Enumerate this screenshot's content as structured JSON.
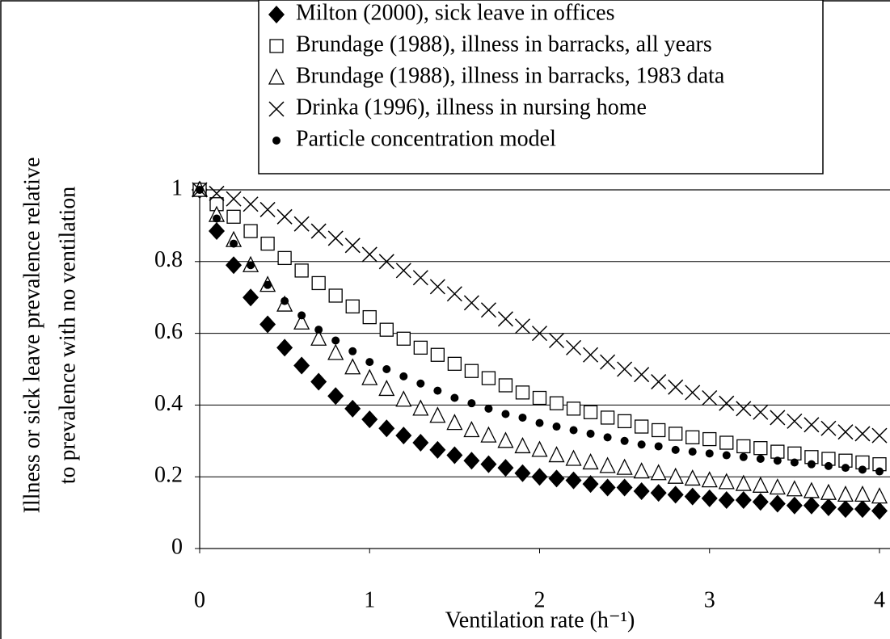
{
  "chart_data": {
    "type": "scatter",
    "x_label": "Ventilation rate (h⁻¹)",
    "y_label": [
      "Illness or sick leave prevalence relative",
      "to prevalence with no ventilation"
    ],
    "x": [
      0,
      0.1,
      0.2,
      0.3,
      0.4,
      0.5,
      0.6,
      0.7,
      0.8,
      0.9,
      1,
      1.1,
      1.2,
      1.3,
      1.4,
      1.5,
      1.6,
      1.7,
      1.8,
      1.9,
      2,
      2.1,
      2.2,
      2.3,
      2.4,
      2.5,
      2.6,
      2.7,
      2.8,
      2.9,
      3,
      3.1,
      3.2,
      3.3,
      3.4,
      3.5,
      3.6,
      3.7,
      3.8,
      3.9,
      4
    ],
    "xlim": [
      0,
      4
    ],
    "xticks": [
      0,
      1,
      2,
      3,
      4
    ],
    "ylim": [
      0,
      1
    ],
    "yticks": [
      0,
      0.2,
      0.4,
      0.6,
      0.8,
      1
    ],
    "grid": true,
    "legend": "top",
    "series": [
      {
        "name": "Milton (2000), sick leave in offices",
        "marker": "diamond",
        "color": "#000000",
        "values": [
          1,
          0.885,
          0.79,
          0.7,
          0.625,
          0.56,
          0.51,
          0.465,
          0.425,
          0.39,
          0.36,
          0.335,
          0.315,
          0.295,
          0.275,
          0.26,
          0.245,
          0.235,
          0.225,
          0.21,
          0.2,
          0.195,
          0.19,
          0.18,
          0.17,
          0.17,
          0.16,
          0.155,
          0.15,
          0.145,
          0.14,
          0.135,
          0.135,
          0.13,
          0.125,
          0.12,
          0.12,
          0.115,
          0.11,
          0.11,
          0.105
        ]
      },
      {
        "name": "Brundage (1988), illness in barracks, all years",
        "marker": "square",
        "color": "#000000",
        "values": [
          1,
          0.96,
          0.925,
          0.885,
          0.85,
          0.81,
          0.775,
          0.74,
          0.705,
          0.675,
          0.645,
          0.61,
          0.585,
          0.56,
          0.54,
          0.515,
          0.495,
          0.475,
          0.455,
          0.435,
          0.42,
          0.405,
          0.39,
          0.38,
          0.365,
          0.355,
          0.34,
          0.33,
          0.32,
          0.31,
          0.305,
          0.295,
          0.285,
          0.28,
          0.27,
          0.265,
          0.255,
          0.25,
          0.245,
          0.24,
          0.235
        ]
      },
      {
        "name": "Brundage (1988), illness in barracks, 1983 data",
        "marker": "triangle",
        "color": "#000000",
        "values": [
          1,
          0.93,
          0.86,
          0.79,
          0.735,
          0.68,
          0.63,
          0.585,
          0.545,
          0.505,
          0.475,
          0.445,
          0.415,
          0.39,
          0.37,
          0.35,
          0.33,
          0.315,
          0.3,
          0.285,
          0.275,
          0.26,
          0.25,
          0.24,
          0.23,
          0.225,
          0.215,
          0.21,
          0.2,
          0.195,
          0.19,
          0.185,
          0.18,
          0.175,
          0.17,
          0.165,
          0.16,
          0.155,
          0.15,
          0.15,
          0.145
        ]
      },
      {
        "name": "Drinka (1996), illness in nursing home",
        "marker": "cross",
        "color": "#000000",
        "values": [
          1,
          0.99,
          0.975,
          0.96,
          0.945,
          0.925,
          0.905,
          0.885,
          0.865,
          0.845,
          0.82,
          0.8,
          0.775,
          0.755,
          0.73,
          0.71,
          0.685,
          0.665,
          0.64,
          0.62,
          0.6,
          0.58,
          0.56,
          0.54,
          0.52,
          0.5,
          0.485,
          0.465,
          0.45,
          0.435,
          0.42,
          0.405,
          0.39,
          0.38,
          0.365,
          0.355,
          0.345,
          0.335,
          0.325,
          0.32,
          0.315
        ]
      },
      {
        "name": "Particle concentration model",
        "marker": "dot",
        "color": "#000000",
        "values": [
          1,
          0.92,
          0.85,
          0.79,
          0.735,
          0.69,
          0.65,
          0.61,
          0.58,
          0.55,
          0.52,
          0.5,
          0.48,
          0.46,
          0.44,
          0.42,
          0.405,
          0.39,
          0.375,
          0.365,
          0.35,
          0.34,
          0.33,
          0.32,
          0.31,
          0.3,
          0.29,
          0.285,
          0.275,
          0.27,
          0.265,
          0.26,
          0.255,
          0.25,
          0.245,
          0.24,
          0.235,
          0.23,
          0.225,
          0.22,
          0.215
        ]
      }
    ]
  }
}
